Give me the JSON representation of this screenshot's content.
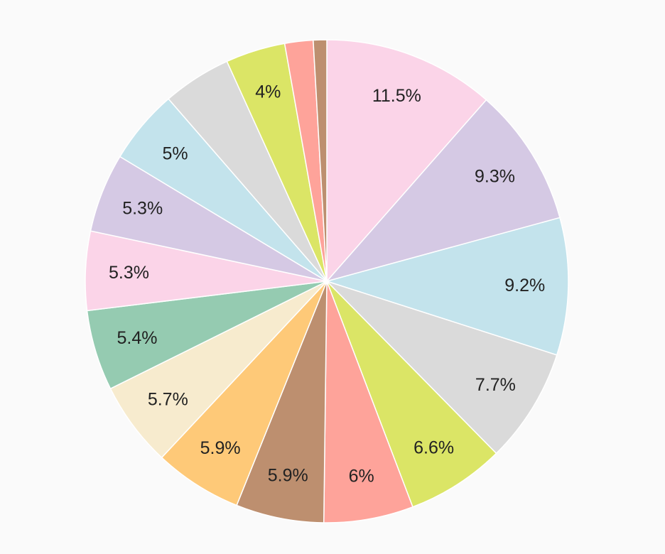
{
  "chart_data": {
    "type": "pie",
    "start": "top",
    "direction": "clockwise",
    "slices": [
      {
        "value": 11.5,
        "label": "11.5%",
        "color": "#fbd4e8"
      },
      {
        "value": 9.3,
        "label": "9.3%",
        "color": "#d5c9e4"
      },
      {
        "value": 9.2,
        "label": "9.2%",
        "color": "#c3e3ec"
      },
      {
        "value": 7.7,
        "label": "7.7%",
        "color": "#dadada"
      },
      {
        "value": 6.6,
        "label": "6.6%",
        "color": "#dbe566"
      },
      {
        "value": 6.0,
        "label": "6%",
        "color": "#fea39a"
      },
      {
        "value": 5.9,
        "label": "5.9%",
        "color": "#bd8f6f"
      },
      {
        "value": 5.9,
        "label": "5.9%",
        "color": "#fec978"
      },
      {
        "value": 5.7,
        "label": "5.7%",
        "color": "#f7ebce"
      },
      {
        "value": 5.4,
        "label": "5.4%",
        "color": "#95cbb1"
      },
      {
        "value": 5.3,
        "label": "5.3%",
        "color": "#fbd4e8"
      },
      {
        "value": 5.3,
        "label": "5.3%",
        "color": "#d5c9e4"
      },
      {
        "value": 5.0,
        "label": "5%",
        "color": "#c3e3ec"
      },
      {
        "value": 4.6,
        "label": "",
        "color": "#dadada"
      },
      {
        "value": 4.0,
        "label": "4%",
        "color": "#dbe566"
      },
      {
        "value": 1.9,
        "label": "",
        "color": "#fea39a"
      },
      {
        "value": 0.9,
        "label": "",
        "color": "#bd8f6f"
      }
    ]
  }
}
